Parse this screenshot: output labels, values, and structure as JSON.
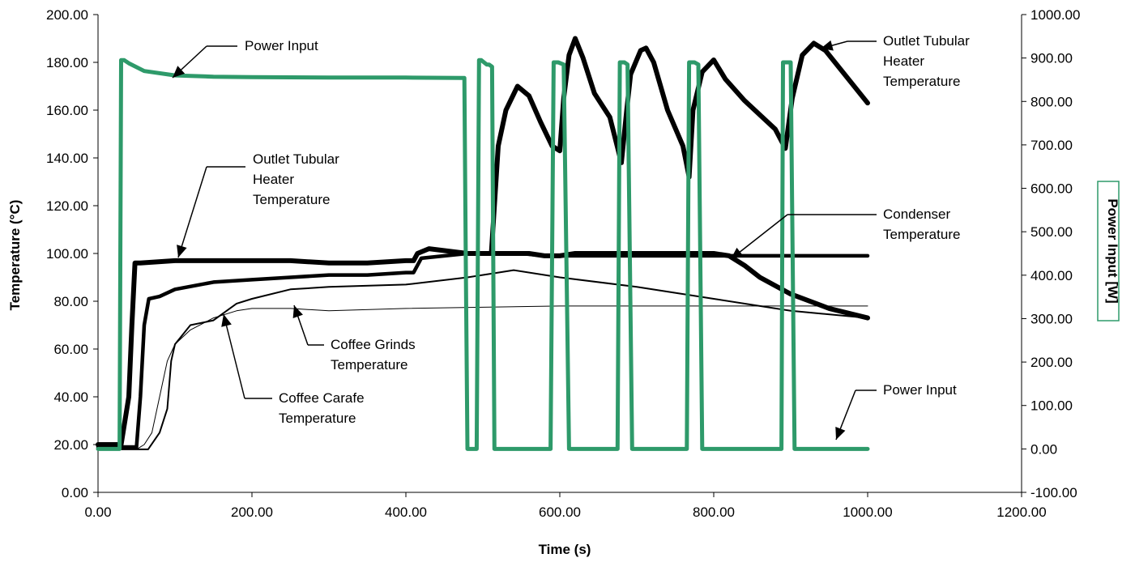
{
  "chart_data": {
    "type": "line",
    "title": "",
    "xlabel": "Time (s)",
    "ylabel": "Temperature (°C)",
    "y2label": "Power Input [W]",
    "xlim": [
      0,
      1200
    ],
    "ylim": [
      0,
      200
    ],
    "y2lim": [
      -100,
      1000
    ],
    "x_ticks": [
      "0.00",
      "200.00",
      "400.00",
      "600.00",
      "800.00",
      "1000.00",
      "1200.00"
    ],
    "y_ticks": [
      "0.00",
      "20.00",
      "40.00",
      "60.00",
      "80.00",
      "100.00",
      "120.00",
      "140.00",
      "160.00",
      "180.00",
      "200.00"
    ],
    "y2_ticks": [
      "-100.00",
      "0.00",
      "100.00",
      "200.00",
      "300.00",
      "400.00",
      "500.00",
      "600.00",
      "700.00",
      "800.00",
      "900.00",
      "1000.00"
    ],
    "grid": false,
    "legend": "none",
    "colors": {
      "power": "#2e9a6a",
      "temperature": "#000000"
    },
    "series": [
      {
        "axis": "right",
        "x": [
          0,
          28,
          30,
          34,
          40,
          60,
          100,
          150,
          200,
          300,
          400,
          470,
          476,
          478,
          480,
          492,
          495,
          498,
          505,
          508,
          512,
          515,
          520,
          588,
          592,
          598,
          605,
          612,
          675,
          678,
          684,
          688,
          694,
          765,
          768,
          775,
          780,
          785,
          888,
          890,
          900,
          905,
          1000
        ],
        "y": [
          0,
          0,
          895,
          895,
          888,
          870,
          860,
          857,
          856,
          855,
          855,
          854,
          854,
          400,
          0,
          0,
          895,
          895,
          885,
          885,
          880,
          0,
          0,
          0,
          890,
          890,
          885,
          0,
          0,
          890,
          890,
          885,
          0,
          0,
          890,
          890,
          885,
          0,
          0,
          890,
          890,
          0,
          0
        ]
      },
      {
        "axis": "left",
        "x": [
          0,
          30,
          40,
          44,
          48,
          55,
          100,
          150,
          200,
          250,
          300,
          350,
          400,
          410,
          415,
          430,
          480,
          560,
          580,
          600,
          620,
          640,
          660,
          700,
          780,
          800,
          820,
          840,
          860,
          900,
          950,
          1000
        ],
        "y": [
          20,
          20,
          40,
          70,
          96,
          96,
          97,
          97,
          97,
          97,
          96,
          96,
          97,
          97,
          100,
          102,
          100,
          100,
          99,
          99,
          100,
          100,
          100,
          100,
          100,
          100,
          99,
          95,
          90,
          83,
          77,
          73
        ]
      },
      {
        "axis": "left",
        "x": [
          0,
          50,
          55,
          60,
          66,
          80,
          100,
          150,
          200,
          250,
          300,
          350,
          400,
          410,
          420,
          480,
          520,
          550,
          580,
          600,
          700,
          800,
          900,
          1000
        ],
        "y": [
          19,
          19,
          40,
          70,
          81,
          82,
          85,
          88,
          89,
          90,
          91,
          91,
          92,
          92,
          98,
          100,
          100,
          100,
          99,
          99,
          99,
          99,
          99,
          99
        ]
      },
      {
        "axis": "left",
        "x": [
          0,
          65,
          80,
          90,
          95,
          100,
          120,
          150,
          180,
          200,
          250,
          300,
          400,
          480,
          520,
          540,
          600,
          700,
          800,
          900,
          1000
        ],
        "y": [
          18,
          18,
          25,
          35,
          55,
          62,
          70,
          72,
          79,
          81,
          85,
          86,
          87,
          90,
          92,
          93,
          90,
          86,
          81,
          76,
          73
        ]
      },
      {
        "axis": "left",
        "x": [
          0,
          50,
          60,
          70,
          80,
          90,
          100,
          120,
          150,
          180,
          200,
          250,
          300,
          400,
          600,
          800,
          1000
        ],
        "y": [
          18,
          18,
          20,
          25,
          40,
          55,
          62,
          68,
          73,
          76,
          77,
          77,
          76,
          77,
          78,
          78,
          78
        ]
      },
      {
        "axis": "left",
        "x": [
          511,
          520,
          530,
          545,
          560,
          575,
          590,
          600,
          605,
          612,
          620,
          630,
          645,
          665,
          680,
          687,
          692,
          705,
          712,
          722,
          740,
          760,
          768,
          773,
          785,
          800,
          815,
          840,
          880,
          893,
          902,
          915,
          930,
          945,
          970,
          1000
        ],
        "y": [
          100,
          145,
          160,
          170,
          166,
          155,
          145,
          143,
          165,
          183,
          190,
          182,
          167,
          157,
          138,
          160,
          175,
          185,
          186,
          180,
          160,
          145,
          132,
          160,
          176,
          181,
          173,
          164,
          152,
          144,
          165,
          183,
          188,
          185,
          175,
          163
        ]
      }
    ],
    "annotations": {
      "power_input_top": "Power Input",
      "outlet_right": [
        "Outlet Tubular",
        "Heater",
        "Temperature"
      ],
      "outlet_left": [
        "Outlet Tubular",
        "Heater",
        "Temperature"
      ],
      "condenser": [
        "Condenser",
        "Temperature"
      ],
      "coffee_grinds": [
        "Coffee Grinds",
        "Temperature"
      ],
      "coffee_carafe": [
        "Coffee Carafe",
        "Temperature"
      ],
      "power_input_bottom": "Power Input"
    }
  }
}
